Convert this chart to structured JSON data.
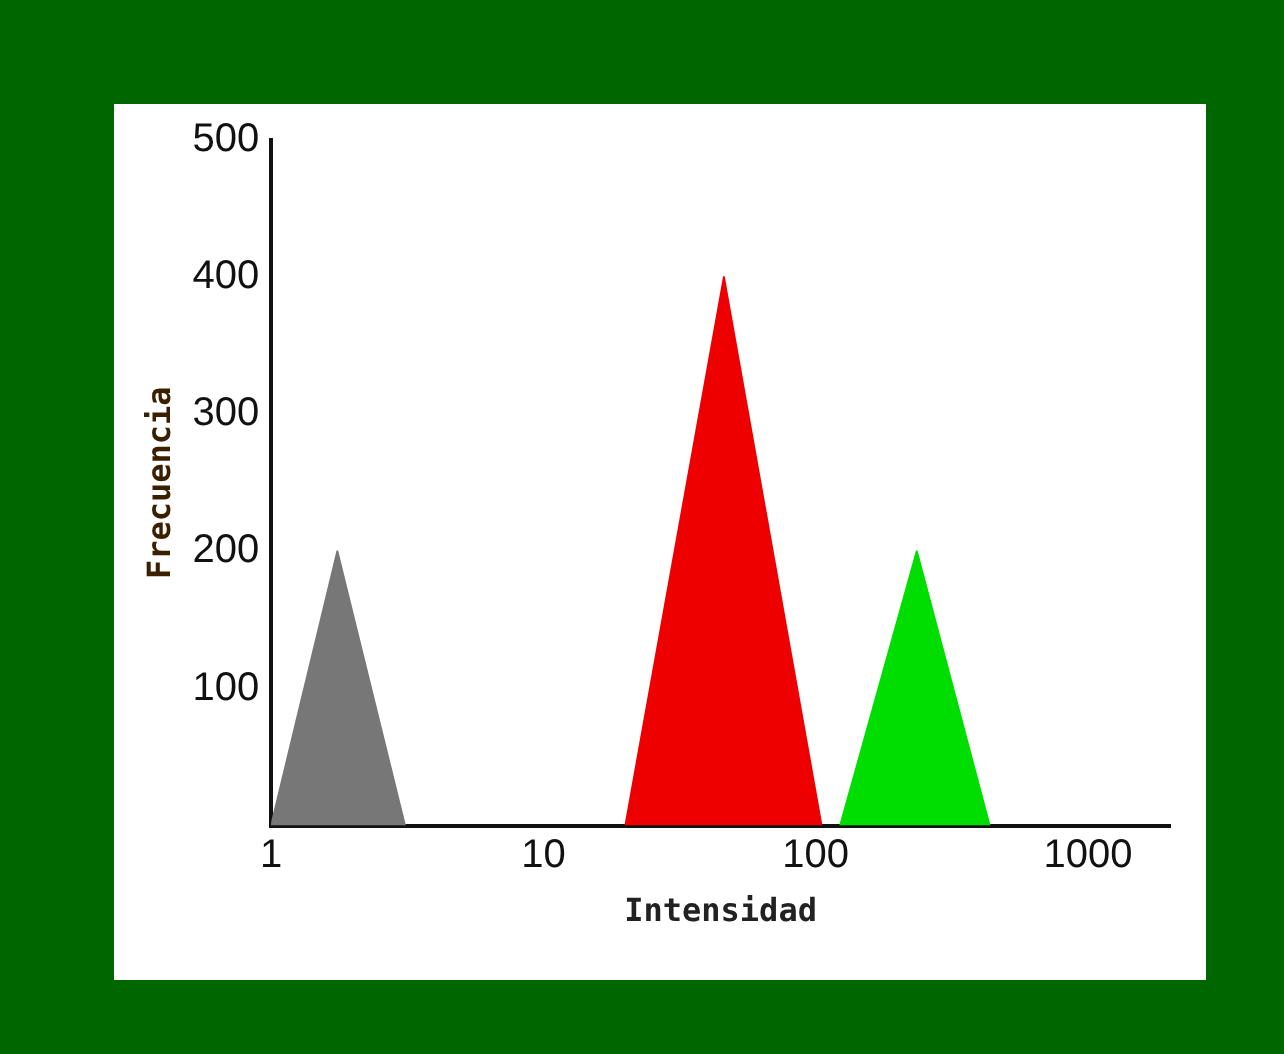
{
  "chart_data": {
    "type": "area",
    "xlabel": "Intensidad",
    "ylabel": "Frecuencia",
    "log": "x",
    "xlim": [
      1,
      2000
    ],
    "xticks": [
      1,
      10,
      100,
      1000
    ],
    "ylim": [
      0,
      500
    ],
    "yticks": [
      100,
      200,
      300,
      400,
      500
    ],
    "grid": false,
    "legend": false,
    "marker": "none",
    "series": [
      {
        "color": "#777777",
        "x": [
          1,
          1.75,
          3.1
        ],
        "values": [
          0,
          200,
          0
        ]
      },
      {
        "color": "#ee0000",
        "x": [
          20,
          46,
          105
        ],
        "values": [
          0,
          400,
          0
        ]
      },
      {
        "color": "#00dd00",
        "x": [
          123,
          235,
          435
        ],
        "values": [
          0,
          200,
          0
        ]
      }
    ]
  }
}
